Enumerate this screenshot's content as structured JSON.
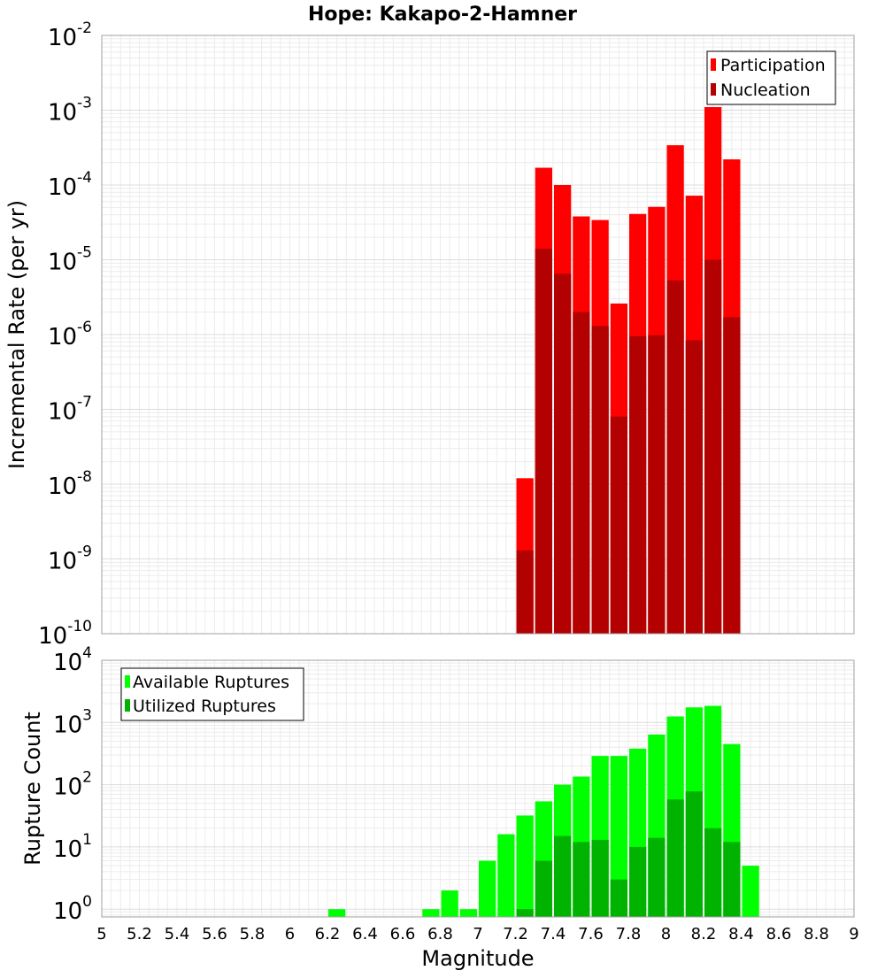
{
  "chart_data": [
    {
      "type": "bar",
      "title": "Hope: Kakapo-2-Hamner",
      "ylabel": "Incremental Rate (per yr)",
      "xlabel": "",
      "xlim": [
        5,
        9
      ],
      "ylim": [
        1e-10,
        0.01
      ],
      "yscale": "log",
      "bin_width": 0.1,
      "grid": true,
      "legend_position": "top-right",
      "y_tick_exponents": [
        "-10",
        "-9",
        "-8",
        "-7",
        "-6",
        "-5",
        "-4",
        "-3",
        "-2"
      ],
      "series": [
        {
          "name": "Participation",
          "color": "#ff0000",
          "x": [
            7.25,
            7.35,
            7.45,
            7.55,
            7.65,
            7.75,
            7.85,
            7.95,
            8.05,
            8.15,
            8.25,
            8.35
          ],
          "values": [
            1.2e-08,
            0.00017,
            0.0001,
            3.8e-05,
            3.4e-05,
            2.6e-06,
            4.1e-05,
            5.1e-05,
            0.00034,
            7.2e-05,
            0.0011,
            0.00022
          ]
        },
        {
          "name": "Nucleation",
          "color": "#b30000",
          "x": [
            7.25,
            7.35,
            7.45,
            7.55,
            7.65,
            7.75,
            7.85,
            7.95,
            8.05,
            8.15,
            8.25,
            8.35
          ],
          "values": [
            1.3e-09,
            1.4e-05,
            6.5e-06,
            2e-06,
            1.3e-06,
            8e-08,
            9.5e-07,
            9.8e-07,
            5.3e-06,
            8.4e-07,
            1e-05,
            1.7e-06
          ]
        }
      ]
    },
    {
      "type": "bar",
      "title": "",
      "ylabel": "Rupture Count",
      "xlabel": "Magnitude",
      "xlim": [
        5,
        9
      ],
      "ylim": [
        0.75,
        10000
      ],
      "yscale": "log",
      "bin_width": 0.1,
      "grid": true,
      "legend_position": "top-left",
      "x_ticks": [
        "5",
        "5.2",
        "5.4",
        "5.6",
        "5.8",
        "6",
        "6.2",
        "6.4",
        "6.6",
        "6.8",
        "7",
        "7.2",
        "7.4",
        "7.6",
        "7.8",
        "8",
        "8.2",
        "8.4",
        "8.6",
        "8.8",
        "9"
      ],
      "y_tick_exponents": [
        "0",
        "1",
        "2",
        "3",
        "4"
      ],
      "series": [
        {
          "name": "Available Ruptures",
          "color": "#00ff00",
          "x": [
            6.25,
            6.75,
            6.85,
            6.95,
            7.05,
            7.15,
            7.25,
            7.35,
            7.45,
            7.55,
            7.65,
            7.75,
            7.85,
            7.95,
            8.05,
            8.15,
            8.25,
            8.35,
            8.45
          ],
          "values": [
            1,
            1,
            2,
            1,
            6,
            16,
            32,
            54,
            100,
            135,
            290,
            290,
            380,
            640,
            1250,
            1750,
            1850,
            450,
            5
          ]
        },
        {
          "name": "Utilized Ruptures",
          "color": "#00b300",
          "x": [
            7.25,
            7.35,
            7.45,
            7.55,
            7.65,
            7.75,
            7.85,
            7.95,
            8.05,
            8.15,
            8.25,
            8.35
          ],
          "values": [
            1,
            6,
            15,
            12,
            13,
            3,
            10,
            14,
            58,
            78,
            20,
            12
          ]
        }
      ]
    }
  ]
}
